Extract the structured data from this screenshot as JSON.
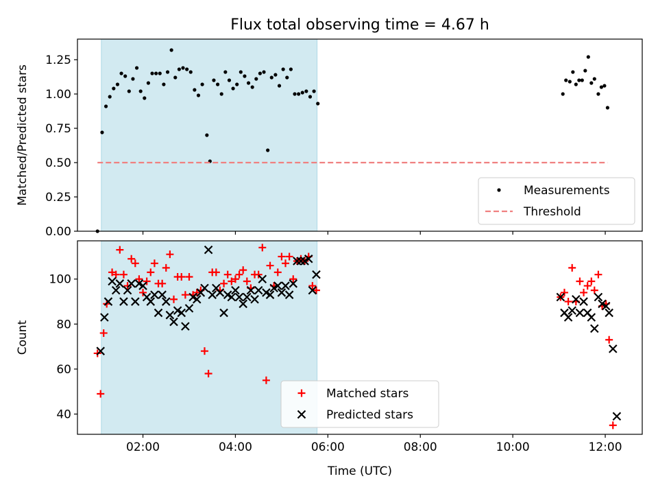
{
  "chart_data": {
    "title": "Flux total observing time = 4.67 h",
    "xlabel": "Time (UTC)",
    "x_range": [
      "00:35",
      "12:48"
    ],
    "x_ticks": [
      "02:00",
      "04:00",
      "06:00",
      "08:00",
      "10:00",
      "12:00"
    ],
    "shaded_interval": {
      "start": "01:06",
      "end": "05:46",
      "color": "#add8e6"
    },
    "panels": [
      {
        "type": "scatter",
        "ylabel": "Matched/Predicted stars",
        "ylim": [
          0,
          1.4
        ],
        "y_ticks": [
          "0.00",
          "0.25",
          "0.50",
          "0.75",
          "1.00",
          "1.25"
        ],
        "legend_position": "lower-right",
        "series": [
          {
            "name": "Measurements",
            "marker": "dot",
            "color": "#000000",
            "points": [
              [
                "01:01",
                0.0
              ],
              [
                "01:07",
                0.72
              ],
              [
                "01:12",
                0.91
              ],
              [
                "01:17",
                0.98
              ],
              [
                "01:22",
                1.04
              ],
              [
                "01:27",
                1.07
              ],
              [
                "01:32",
                1.15
              ],
              [
                "01:37",
                1.13
              ],
              [
                "01:42",
                1.02
              ],
              [
                "01:47",
                1.11
              ],
              [
                "01:52",
                1.19
              ],
              [
                "01:57",
                1.02
              ],
              [
                "02:02",
                0.97
              ],
              [
                "02:07",
                1.08
              ],
              [
                "02:12",
                1.15
              ],
              [
                "02:17",
                1.15
              ],
              [
                "02:22",
                1.15
              ],
              [
                "02:27",
                1.07
              ],
              [
                "02:32",
                1.16
              ],
              [
                "02:37",
                1.32
              ],
              [
                "02:42",
                1.12
              ],
              [
                "02:47",
                1.18
              ],
              [
                "02:52",
                1.19
              ],
              [
                "02:57",
                1.18
              ],
              [
                "03:02",
                1.16
              ],
              [
                "03:07",
                1.03
              ],
              [
                "03:12",
                0.99
              ],
              [
                "03:17",
                1.07
              ],
              [
                "03:23",
                0.7
              ],
              [
                "03:27",
                0.51
              ],
              [
                "03:32",
                1.1
              ],
              [
                "03:37",
                1.07
              ],
              [
                "03:42",
                1.0
              ],
              [
                "03:47",
                1.16
              ],
              [
                "03:52",
                1.1
              ],
              [
                "03:57",
                1.04
              ],
              [
                "04:02",
                1.07
              ],
              [
                "04:07",
                1.16
              ],
              [
                "04:12",
                1.13
              ],
              [
                "04:17",
                1.08
              ],
              [
                "04:22",
                1.05
              ],
              [
                "04:27",
                1.11
              ],
              [
                "04:32",
                1.15
              ],
              [
                "04:37",
                1.16
              ],
              [
                "04:42",
                0.59
              ],
              [
                "04:47",
                1.12
              ],
              [
                "04:52",
                1.14
              ],
              [
                "04:57",
                1.06
              ],
              [
                "05:02",
                1.18
              ],
              [
                "05:07",
                1.12
              ],
              [
                "05:12",
                1.18
              ],
              [
                "05:17",
                1.0
              ],
              [
                "05:22",
                1.0
              ],
              [
                "05:27",
                1.01
              ],
              [
                "05:32",
                1.02
              ],
              [
                "05:37",
                0.98
              ],
              [
                "05:42",
                1.02
              ],
              [
                "05:47",
                0.93
              ],
              [
                "11:05",
                1.0
              ],
              [
                "11:09",
                1.1
              ],
              [
                "11:14",
                1.09
              ],
              [
                "11:18",
                1.16
              ],
              [
                "11:22",
                1.07
              ],
              [
                "11:26",
                1.1
              ],
              [
                "11:30",
                1.1
              ],
              [
                "11:34",
                1.17
              ],
              [
                "11:38",
                1.27
              ],
              [
                "11:42",
                1.08
              ],
              [
                "11:46",
                1.11
              ],
              [
                "11:51",
                1.0
              ],
              [
                "11:55",
                1.05
              ],
              [
                "11:59",
                1.06
              ],
              [
                "12:03",
                0.9
              ]
            ]
          },
          {
            "name": "Threshold",
            "marker": "dashed-line",
            "color": "#f08080",
            "points": [
              [
                "01:01",
                0.5
              ],
              [
                "12:03",
                0.5
              ]
            ]
          }
        ]
      },
      {
        "type": "scatter",
        "ylabel": "Count",
        "ylim": [
          31,
          117
        ],
        "y_ticks": [
          "40",
          "60",
          "80",
          "100"
        ],
        "legend_position": "lower-center",
        "series": [
          {
            "name": "Matched stars",
            "marker": "plus",
            "color": "#ff0000",
            "points": [
              [
                "01:01",
                67
              ],
              [
                "01:05",
                49
              ],
              [
                "01:09",
                76
              ],
              [
                "01:13",
                89
              ],
              [
                "01:20",
                103
              ],
              [
                "01:25",
                102
              ],
              [
                "01:30",
                113
              ],
              [
                "01:35",
                102
              ],
              [
                "01:40",
                97
              ],
              [
                "01:45",
                109
              ],
              [
                "01:50",
                107
              ],
              [
                "01:55",
                100
              ],
              [
                "02:00",
                94
              ],
              [
                "02:05",
                99
              ],
              [
                "02:10",
                103
              ],
              [
                "02:15",
                107
              ],
              [
                "02:20",
                98
              ],
              [
                "02:25",
                98
              ],
              [
                "02:30",
                105
              ],
              [
                "02:35",
                111
              ],
              [
                "02:40",
                91
              ],
              [
                "02:45",
                101
              ],
              [
                "02:50",
                101
              ],
              [
                "02:55",
                93
              ],
              [
                "03:00",
                101
              ],
              [
                "03:05",
                93
              ],
              [
                "03:10",
                94
              ],
              [
                "03:15",
                95
              ],
              [
                "03:20",
                68
              ],
              [
                "03:25",
                58
              ],
              [
                "03:30",
                103
              ],
              [
                "03:35",
                103
              ],
              [
                "03:40",
                95
              ],
              [
                "03:45",
                98
              ],
              [
                "03:50",
                102
              ],
              [
                "03:55",
                99
              ],
              [
                "04:00",
                100
              ],
              [
                "04:05",
                102
              ],
              [
                "04:10",
                104
              ],
              [
                "04:15",
                99
              ],
              [
                "04:20",
                96
              ],
              [
                "04:25",
                102
              ],
              [
                "04:30",
                102
              ],
              [
                "04:35",
                114
              ],
              [
                "04:40",
                55
              ],
              [
                "04:45",
                106
              ],
              [
                "04:50",
                97
              ],
              [
                "04:55",
                103
              ],
              [
                "05:00",
                110
              ],
              [
                "05:05",
                107
              ],
              [
                "05:10",
                110
              ],
              [
                "05:15",
                100
              ],
              [
                "05:20",
                108
              ],
              [
                "05:25",
                109
              ],
              [
                "05:30",
                108
              ],
              [
                "05:35",
                110
              ],
              [
                "05:40",
                97
              ],
              [
                "05:45",
                95
              ],
              [
                "11:02",
                92
              ],
              [
                "11:07",
                94
              ],
              [
                "11:12",
                90
              ],
              [
                "11:17",
                105
              ],
              [
                "11:22",
                90
              ],
              [
                "11:27",
                99
              ],
              [
                "11:32",
                94
              ],
              [
                "11:37",
                97
              ],
              [
                "11:42",
                99
              ],
              [
                "11:46",
                95
              ],
              [
                "11:51",
                102
              ],
              [
                "11:56",
                88
              ],
              [
                "12:01",
                89
              ],
              [
                "12:05",
                73
              ],
              [
                "12:10",
                35
              ]
            ]
          },
          {
            "name": "Predicted stars",
            "marker": "x",
            "color": "#000000",
            "points": [
              [
                "01:05",
                68
              ],
              [
                "01:10",
                83
              ],
              [
                "01:15",
                90
              ],
              [
                "01:20",
                99
              ],
              [
                "01:25",
                95
              ],
              [
                "01:30",
                98
              ],
              [
                "01:35",
                90
              ],
              [
                "01:40",
                95
              ],
              [
                "01:45",
                98
              ],
              [
                "01:50",
                90
              ],
              [
                "01:55",
                98
              ],
              [
                "02:00",
                97
              ],
              [
                "02:05",
                92
              ],
              [
                "02:10",
                90
              ],
              [
                "02:15",
                93
              ],
              [
                "02:20",
                85
              ],
              [
                "02:25",
                93
              ],
              [
                "02:30",
                90
              ],
              [
                "02:35",
                84
              ],
              [
                "02:40",
                81
              ],
              [
                "02:45",
                86
              ],
              [
                "02:50",
                85
              ],
              [
                "02:55",
                79
              ],
              [
                "03:00",
                87
              ],
              [
                "03:05",
                92
              ],
              [
                "03:10",
                91
              ],
              [
                "03:15",
                94
              ],
              [
                "03:20",
                96
              ],
              [
                "03:25",
                113
              ],
              [
                "03:30",
                93
              ],
              [
                "03:35",
                96
              ],
              [
                "03:40",
                94
              ],
              [
                "03:45",
                85
              ],
              [
                "03:50",
                93
              ],
              [
                "03:55",
                92
              ],
              [
                "04:00",
                95
              ],
              [
                "04:05",
                92
              ],
              [
                "04:10",
                89
              ],
              [
                "04:15",
                92
              ],
              [
                "04:20",
                95
              ],
              [
                "04:25",
                91
              ],
              [
                "04:30",
                95
              ],
              [
                "04:35",
                100
              ],
              [
                "04:40",
                94
              ],
              [
                "04:45",
                93
              ],
              [
                "04:50",
                96
              ],
              [
                "04:55",
                97
              ],
              [
                "05:00",
                94
              ],
              [
                "05:05",
                97
              ],
              [
                "05:10",
                93
              ],
              [
                "05:15",
                98
              ],
              [
                "05:20",
                108
              ],
              [
                "05:25",
                108
              ],
              [
                "05:30",
                108
              ],
              [
                "05:35",
                109
              ],
              [
                "05:40",
                95
              ],
              [
                "05:45",
                102
              ],
              [
                "11:02",
                92
              ],
              [
                "11:07",
                85
              ],
              [
                "11:12",
                83
              ],
              [
                "11:17",
                86
              ],
              [
                "11:22",
                91
              ],
              [
                "11:27",
                85
              ],
              [
                "11:32",
                90
              ],
              [
                "11:37",
                85
              ],
              [
                "11:42",
                83
              ],
              [
                "11:46",
                78
              ],
              [
                "11:51",
                92
              ],
              [
                "11:56",
                89
              ],
              [
                "12:01",
                88
              ],
              [
                "12:05",
                85
              ],
              [
                "12:10",
                69
              ],
              [
                "12:15",
                39
              ]
            ]
          }
        ]
      }
    ]
  }
}
